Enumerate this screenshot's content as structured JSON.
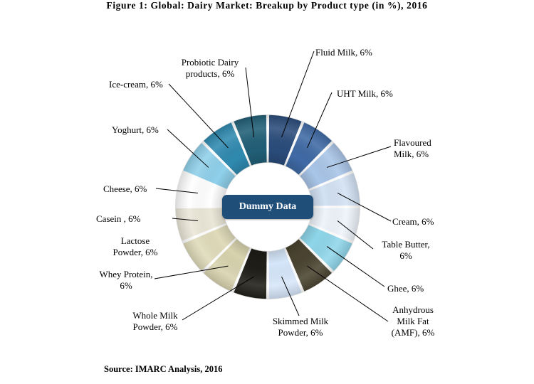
{
  "chart_data": {
    "type": "pie",
    "title": "Figure 1: Global: Dairy Market: Breakup by Product type (in %), 2016",
    "center_label": "Dummy Data",
    "source": "Source: IMARC Analysis, 2016",
    "slices": [
      {
        "label": [
          "Fluid Milk, 6%"
        ],
        "value": 6,
        "color": "#2a4c7b"
      },
      {
        "label": [
          "UHT Milk, 6%"
        ],
        "value": 6,
        "color": "#3f6aa5"
      },
      {
        "label": [
          "Flavoured",
          "Milk, 6%"
        ],
        "value": 6,
        "color": "#a9c5e8"
      },
      {
        "label": [
          "Cream, 6%"
        ],
        "value": 6,
        "color": "#d3e2f4"
      },
      {
        "label": [
          "Table Butter,",
          "6%"
        ],
        "value": 6,
        "color": "#eef4fb"
      },
      {
        "label": [
          "Ghee, 6%"
        ],
        "value": 6,
        "color": "#8fd6ea"
      },
      {
        "label": [
          "Anhydrous",
          "Milk Fat",
          "(AMF), 6%"
        ],
        "value": 6,
        "color": "#4a4330"
      },
      {
        "label": [
          "Skimmed Milk",
          "Powder, 6%"
        ],
        "value": 6,
        "color": "#d6e6fa"
      },
      {
        "label": [
          "Whole Milk",
          "Powder, 6%"
        ],
        "value": 6,
        "color": "#1f1d17"
      },
      {
        "label": [
          "Whey Protein,",
          "6%"
        ],
        "value": 6,
        "color": "#d8d3ae"
      },
      {
        "label": [
          "Lactose",
          "Powder, 6%"
        ],
        "value": 6,
        "color": "#e0dbba"
      },
      {
        "label": [
          "Casein , 6%"
        ],
        "value": 6,
        "color": "#ebe7d8"
      },
      {
        "label": [
          "Cheese, 6%"
        ],
        "value": 6,
        "color": "#ffffff"
      },
      {
        "label": [
          "Yoghurt, 6%"
        ],
        "value": 6,
        "color": "#8fd0ea"
      },
      {
        "label": [
          "Ice-cream, 6%"
        ],
        "value": 6,
        "color": "#2f8ab0"
      },
      {
        "label": [
          "Probiotic Dairy",
          "products, 6%"
        ],
        "value": 6,
        "color": "#215f77"
      }
    ]
  }
}
